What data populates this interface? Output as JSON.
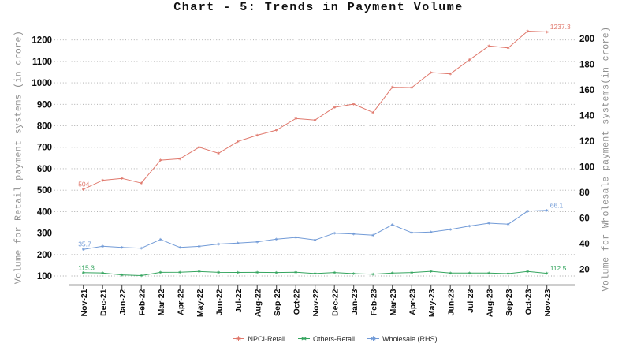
{
  "title": "Chart - 5: Trends in Payment Volume",
  "chart_data": {
    "type": "line",
    "title": "Chart - 5: Trends in Payment Volume",
    "categories": [
      "Nov-21",
      "Dec-21",
      "Jan-22",
      "Feb-22",
      "Mar-22",
      "Apr-22",
      "May-22",
      "Jun-22",
      "Jul-22",
      "Aug-22",
      "Sep-22",
      "Oct-22",
      "Nov-22",
      "Dec-22",
      "Jan-23",
      "Feb-23",
      "Mar-23",
      "Apr-23",
      "May-23",
      "Jun-23",
      "Jul-23",
      "Aug-23",
      "Sep-23",
      "Oct-23",
      "Nov-23"
    ],
    "series": [
      {
        "name": "NPCI-Retail",
        "axis": "left",
        "color": "#e0796d",
        "marker": "asterisk",
        "first_point_label": "504",
        "last_point_label": "1237.3",
        "values": [
          504,
          546,
          555,
          533,
          640,
          646,
          700,
          672,
          727,
          756,
          780,
          834,
          827,
          886,
          901,
          862,
          980,
          978,
          1048,
          1042,
          1108,
          1172,
          1163,
          1241,
          1237.3
        ]
      },
      {
        "name": "Others-Retail",
        "axis": "left",
        "color": "#35a55f",
        "marker": "asterisk",
        "first_point_label": "115.3",
        "last_point_label": "112.5",
        "values": [
          115.3,
          114,
          105,
          102,
          117,
          117.5,
          121,
          117,
          116.5,
          117,
          116,
          117.5,
          111.5,
          116,
          111,
          108.5,
          113.5,
          116,
          121.5,
          113.5,
          113.5,
          113.5,
          111,
          121,
          112.5
        ]
      },
      {
        "name": "Wholesale (RHS)",
        "axis": "right",
        "color": "#729bd7",
        "marker": "asterisk",
        "first_point_label": "35.7",
        "last_point_label": "66.1",
        "values": [
          35.7,
          38.1,
          37.2,
          36.6,
          43.4,
          37.2,
          38,
          39.8,
          40.6,
          41.5,
          43.6,
          45,
          43,
          48.3,
          47.7,
          46.7,
          54.9,
          48.7,
          49.2,
          51.2,
          53.9,
          56.1,
          55.3,
          65.5,
          66.1
        ]
      }
    ],
    "left_axis": {
      "title": "Volume for Retail payment systems (in crore)",
      "ticks": [
        100,
        200,
        300,
        400,
        500,
        600,
        700,
        800,
        900,
        1000,
        1100,
        1200
      ],
      "min": 100,
      "max": 1200
    },
    "right_axis": {
      "title": "Volume for Wholesale payment systems(in crore)",
      "ticks": [
        20,
        40,
        60,
        80,
        100,
        120,
        140,
        160,
        180,
        200
      ],
      "min": 20,
      "max": 200
    },
    "x_axis": {
      "tick_label_rotation": -90
    },
    "grid": {
      "horizontal": true,
      "style": "dotted"
    },
    "legend_position": "bottom"
  },
  "colors": {
    "background": "#ffffff",
    "grid": "#a6a6a6",
    "axis": "#3c3c3c",
    "tick_text": "#0e0e0e",
    "axis_title_text": "#8e8e8e",
    "legend_text": "#2b2b2b"
  }
}
